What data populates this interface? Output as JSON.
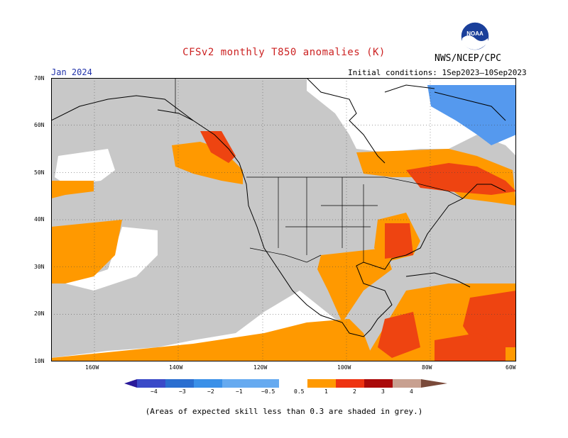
{
  "header": {
    "title": "CFSv2 monthly T850 anomalies (K)",
    "agency": "NWS/NCEP/CPC",
    "month": "Jan 2024",
    "initial_conditions": "Initial conditions: 1Sep2023–10Sep2023",
    "logo_text": "NOAA"
  },
  "map": {
    "lat_labels": [
      "70N",
      "60N",
      "50N",
      "40N",
      "30N",
      "20N",
      "10N"
    ],
    "lon_labels": [
      "160W",
      "140W",
      "120W",
      "100W",
      "80W",
      "60W"
    ],
    "colors": {
      "skill_grey": "#c8c8c8",
      "warm_0_5_1": "#ff9900",
      "warm_1_2": "#ee4411",
      "cool_m1_m0_5": "#5599ee",
      "coast": "#000000"
    }
  },
  "colorbar": {
    "labels": [
      "−4",
      "−3",
      "−2",
      "−1",
      "−0.5",
      "0.5",
      "1",
      "2",
      "3",
      "4"
    ],
    "colors": [
      "#2a1a9a",
      "#3a4ac8",
      "#2a6ed0",
      "#3a90e8",
      "#66aaf0",
      "#ffffff",
      "#ff9900",
      "#ee3311",
      "#aa0a0a",
      "#c8a090",
      "#7a4a3a"
    ]
  },
  "footnote": "(Areas of expected skill less than 0.3 are shaded in grey.)"
}
